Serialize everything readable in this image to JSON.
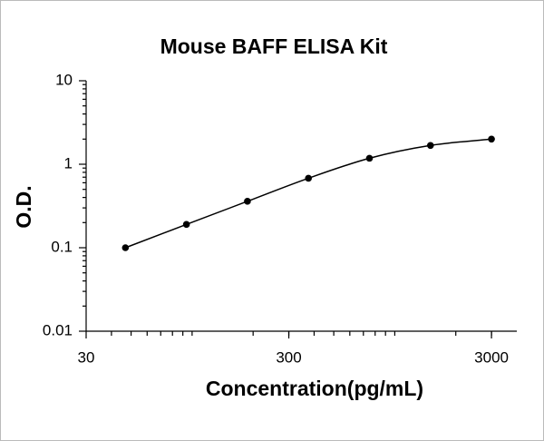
{
  "chart_data": {
    "type": "scatter",
    "title": "Mouse BAFF ELISA Kit",
    "x_label": "Concentration(pg/mL)",
    "y_label": "O.D.",
    "x": [
      46.875,
      93.75,
      187.5,
      375,
      750,
      1500,
      3000
    ],
    "values": [
      0.1,
      0.19,
      0.36,
      0.68,
      1.18,
      1.68,
      2.0
    ],
    "color": "#000000",
    "smooth_line": true,
    "x_log": true,
    "y_log": true,
    "xlim": [
      30,
      4000
    ],
    "xticks": [
      30,
      300,
      3000
    ],
    "ylim": [
      0.01,
      10
    ],
    "yticks": [
      0.01,
      0.1,
      1,
      10
    ]
  }
}
